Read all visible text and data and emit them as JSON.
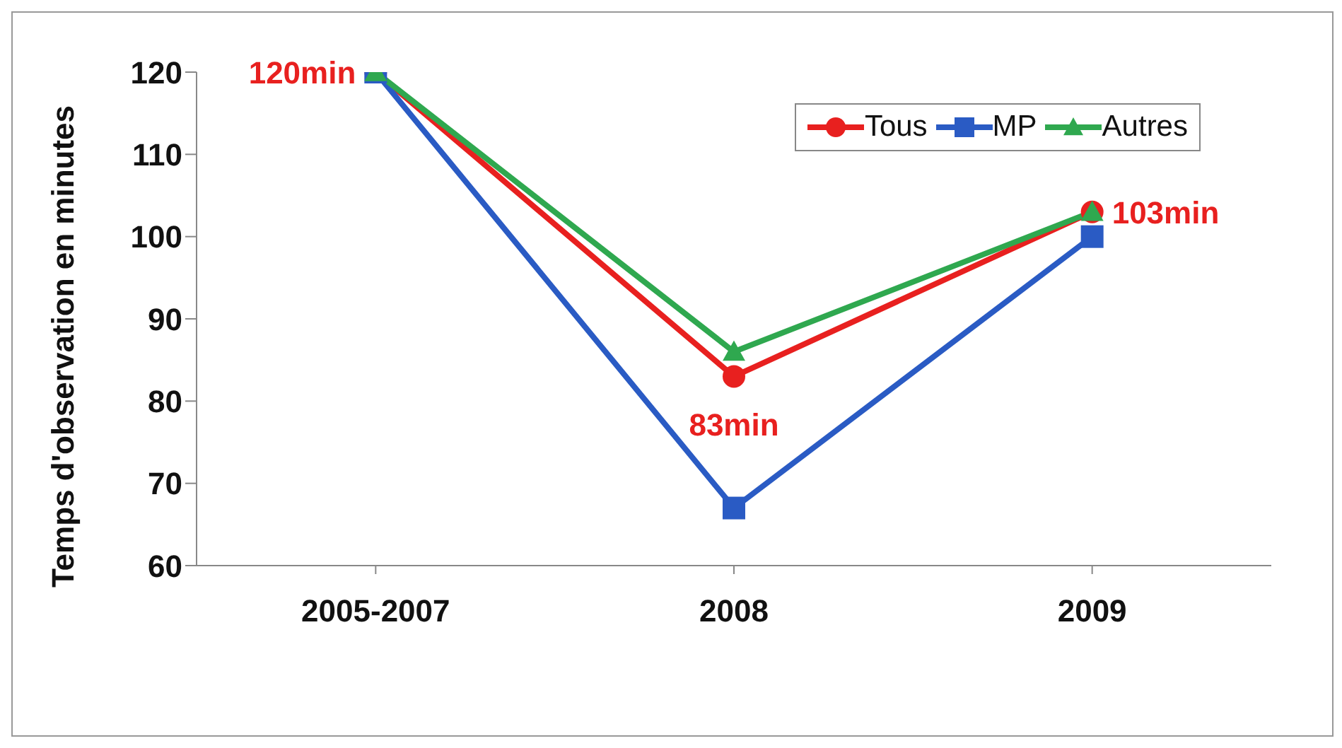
{
  "chart_data": {
    "type": "line",
    "ylabel": "Temps d'observation en minutes",
    "categories": [
      "2005-2007",
      "2008",
      "2009"
    ],
    "series": [
      {
        "name": "Tous",
        "color": "#e8201f",
        "marker": "circle",
        "values": [
          120,
          83,
          103
        ],
        "value_labels": [
          "120min",
          "83min",
          "103min"
        ]
      },
      {
        "name": "MP",
        "color": "#2a5bc4",
        "marker": "square",
        "values": [
          120,
          67,
          100
        ]
      },
      {
        "name": "Autres",
        "color": "#2fa84f",
        "marker": "triangle",
        "values": [
          120,
          86,
          103
        ]
      }
    ],
    "ylim": [
      60,
      120
    ],
    "yticks": [
      60,
      70,
      80,
      90,
      100,
      110,
      120
    ],
    "grid": false,
    "legend": "top right"
  }
}
